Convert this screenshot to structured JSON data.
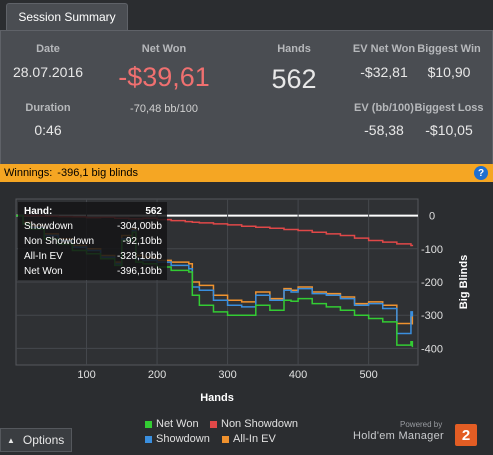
{
  "tab": {
    "label": "Session Summary"
  },
  "summary": {
    "date_label": "Date",
    "date_value": "28.07.2016",
    "duration_label": "Duration",
    "duration_value": "0:46",
    "net_won_label": "Net Won",
    "net_won_value": "-$39,61",
    "net_won_bb": "-70,48 bb/100",
    "hands_label": "Hands",
    "hands_value": "562",
    "ev_net_won_label": "EV Net Won",
    "ev_net_won_value": "-$32,81",
    "biggest_win_label": "Biggest Win",
    "biggest_win_value": "$10,90",
    "ev_bb_label": "EV (bb/100)",
    "ev_bb_value": "-58,38",
    "biggest_loss_label": "Biggest Loss",
    "biggest_loss_value": "-$10,05"
  },
  "banner": {
    "label": "Winnings:",
    "value": "-396,1 big blinds",
    "help": "?"
  },
  "tooltip": {
    "hand_label": "Hand:",
    "hand_value": "562",
    "showdown_label": "Showdown",
    "showdown_value": "-304,00bb",
    "non_showdown_label": "Non Showdown",
    "non_showdown_value": "-92,10bb",
    "allin_label": "All-In EV",
    "allin_value": "-328,10bb",
    "netwon_label": "Net Won",
    "netwon_value": "-396,10bb"
  },
  "legend": {
    "net_won": "Net Won",
    "non_showdown": "Non Showdown",
    "showdown": "Showdown",
    "allin_ev": "All-In EV"
  },
  "footer": {
    "options_label": "Options",
    "powered": "Powered by",
    "brand": "Hold'em Manager",
    "brand_number": "2"
  },
  "colors": {
    "net_won": "#33cc33",
    "non_showdown": "#e04848",
    "showdown": "#3a8fdf",
    "allin_ev": "#f0922e",
    "banner": "#f5a623",
    "net_won_text": "#f07070"
  },
  "chart_data": {
    "type": "line",
    "xlabel": "Hands",
    "ylabel": "Big Blinds",
    "xlim": [
      0,
      570
    ],
    "ylim": [
      -450,
      50
    ],
    "xticks": [
      100,
      200,
      300,
      400,
      500
    ],
    "yticks": [
      0,
      -100,
      -200,
      -300,
      -400
    ],
    "ytick_labels": [
      "0",
      "-100",
      "-200",
      "-300",
      "-400"
    ],
    "grid": true,
    "legend_position": "bottom",
    "series": [
      {
        "name": "Non Showdown",
        "color": "#e04848",
        "x": [
          0,
          20,
          40,
          60,
          80,
          100,
          120,
          140,
          160,
          180,
          200,
          220,
          240,
          250,
          260,
          280,
          300,
          320,
          340,
          360,
          380,
          400,
          420,
          440,
          460,
          480,
          500,
          520,
          540,
          560,
          562
        ],
        "y": [
          0,
          0,
          -2,
          -3,
          -4,
          -6,
          -5,
          -8,
          -10,
          -8,
          -12,
          -15,
          -18,
          -20,
          -22,
          -25,
          -28,
          -32,
          -35,
          -38,
          -42,
          -45,
          -50,
          -55,
          -60,
          -68,
          -75,
          -80,
          -85,
          -90,
          -92.1
        ]
      },
      {
        "name": "All-In EV",
        "color": "#f0922e",
        "x": [
          0,
          10,
          20,
          40,
          60,
          80,
          100,
          120,
          140,
          150,
          165,
          170,
          180,
          200,
          220,
          245,
          250,
          260,
          280,
          300,
          320,
          340,
          360,
          380,
          390,
          400,
          420,
          440,
          460,
          480,
          500,
          520,
          540,
          560,
          562
        ],
        "y": [
          0,
          -20,
          -30,
          -55,
          -70,
          -90,
          -100,
          -120,
          -140,
          -60,
          -40,
          -120,
          -125,
          -135,
          -140,
          -145,
          -200,
          -210,
          -240,
          -255,
          -260,
          -230,
          -250,
          -220,
          -225,
          -215,
          -230,
          -235,
          -245,
          -265,
          -260,
          -270,
          -325,
          -305,
          -328.1
        ]
      },
      {
        "name": "Showdown",
        "color": "#3a8fdf",
        "x": [
          0,
          10,
          20,
          40,
          60,
          80,
          100,
          120,
          140,
          150,
          165,
          170,
          180,
          200,
          220,
          245,
          250,
          260,
          280,
          300,
          320,
          340,
          360,
          380,
          390,
          400,
          420,
          440,
          460,
          480,
          500,
          520,
          540,
          560,
          562
        ],
        "y": [
          0,
          -25,
          -35,
          -60,
          -75,
          -95,
          -105,
          -125,
          -145,
          -70,
          -45,
          -130,
          -135,
          -140,
          -150,
          -160,
          -215,
          -225,
          -255,
          -270,
          -275,
          -240,
          -255,
          -225,
          -230,
          -220,
          -235,
          -240,
          -250,
          -270,
          -265,
          -280,
          -355,
          -290,
          -304
        ]
      },
      {
        "name": "Net Won",
        "color": "#33cc33",
        "x": [
          0,
          10,
          20,
          40,
          60,
          80,
          100,
          120,
          140,
          150,
          165,
          170,
          180,
          200,
          220,
          245,
          250,
          260,
          280,
          300,
          320,
          340,
          360,
          380,
          390,
          400,
          420,
          440,
          460,
          480,
          500,
          520,
          540,
          560,
          562
        ],
        "y": [
          0,
          -25,
          -40,
          -70,
          -85,
          -105,
          -115,
          -130,
          -150,
          -75,
          -50,
          -140,
          -145,
          -155,
          -165,
          -170,
          -240,
          -270,
          -290,
          -300,
          -300,
          -270,
          -285,
          -255,
          -258,
          -250,
          -265,
          -275,
          -285,
          -300,
          -310,
          -320,
          -390,
          -380,
          -396.1
        ]
      }
    ]
  }
}
